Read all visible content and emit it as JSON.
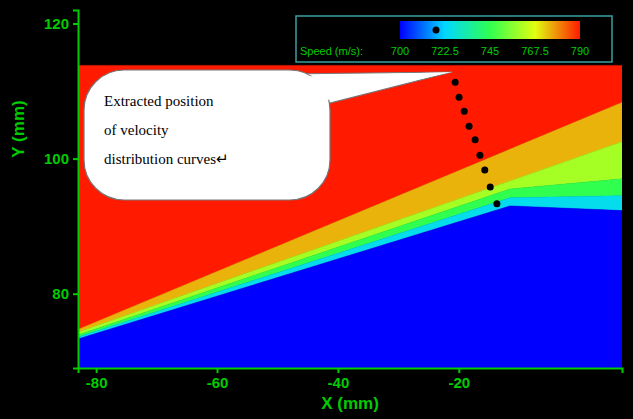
{
  "chart_data": {
    "type": "heatmap",
    "xlabel": "X (mm)",
    "ylabel": "Y (mm)",
    "xlim": [
      -83,
      7
    ],
    "ylim": [
      69,
      122
    ],
    "xticks": [
      -80,
      -60,
      -40,
      -20
    ],
    "yticks": [
      80,
      100,
      120
    ],
    "grid": false,
    "colorbar": {
      "title": "Speed (m/s):",
      "range": [
        700,
        790
      ],
      "ticks": [
        700,
        722.5,
        745,
        767.5,
        790
      ]
    },
    "regions": [
      {
        "speed": 790,
        "points": [
          [
            -83,
            113.8
          ],
          [
            7,
            113.8
          ],
          [
            7,
            108.3
          ],
          [
            -83,
            74.7
          ]
        ]
      },
      {
        "speed": 775,
        "points": [
          [
            -83,
            74.7
          ],
          [
            7,
            108.3
          ],
          [
            7,
            102.5
          ],
          [
            -83,
            74.3
          ]
        ]
      },
      {
        "speed": 760,
        "points": [
          [
            -83,
            74.3
          ],
          [
            7,
            102.5
          ],
          [
            7,
            97.0
          ],
          [
            -11.5,
            95.5
          ],
          [
            -83,
            73.9
          ]
        ]
      },
      {
        "speed": 745,
        "points": [
          [
            -83,
            73.9
          ],
          [
            -11.5,
            95.5
          ],
          [
            7,
            97.0
          ],
          [
            7,
            94.5
          ],
          [
            -11.5,
            94.2
          ],
          [
            -83,
            73.6
          ]
        ]
      },
      {
        "speed": 725,
        "points": [
          [
            -83,
            73.6
          ],
          [
            -11.5,
            94.2
          ],
          [
            7,
            94.5
          ],
          [
            7,
            92.3
          ],
          [
            -11.5,
            93.0
          ],
          [
            -83,
            73.3
          ]
        ]
      },
      {
        "speed": 700,
        "points": [
          [
            -83,
            73.3
          ],
          [
            -11.5,
            93.0
          ],
          [
            7,
            92.3
          ],
          [
            7,
            69
          ],
          [
            -83,
            69
          ]
        ]
      }
    ],
    "extraction_points": {
      "x": [
        -20.6,
        -19.96,
        -19.1,
        -18.3,
        -17.3,
        -16.5,
        -15.7,
        -14.8,
        -13.7
      ],
      "y": [
        111.3,
        109.1,
        107.0,
        104.8,
        102.8,
        100.5,
        98.3,
        95.8,
        93.3
      ]
    },
    "annotation": "Extracted position of velocity distribution curves↵"
  }
}
